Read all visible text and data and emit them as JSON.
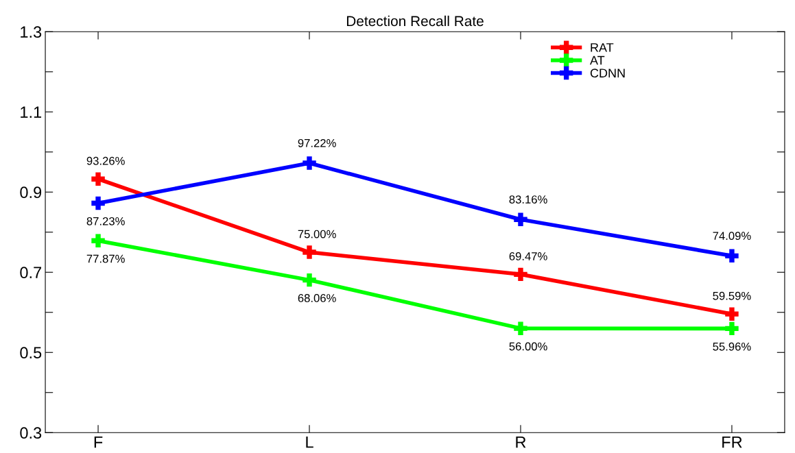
{
  "chart_data": {
    "type": "line",
    "title": "Detection Recall Rate",
    "categories": [
      "F",
      "L",
      "R",
      "FR"
    ],
    "series": [
      {
        "name": "RAT",
        "color": "#ff0000",
        "values": [
          0.9326,
          0.75,
          0.6947,
          0.5959
        ],
        "value_labels": [
          "93.26%",
          "75.00%",
          "69.47%",
          "59.59%"
        ]
      },
      {
        "name": "AT",
        "color": "#00ff00",
        "values": [
          0.7787,
          0.6806,
          0.56,
          0.5596
        ],
        "value_labels": [
          "77.87%",
          "68.06%",
          "56.00%",
          "55.96%"
        ]
      },
      {
        "name": "CDNN",
        "color": "#0000ff",
        "values": [
          0.8723,
          0.9722,
          0.8316,
          0.7409
        ],
        "value_labels": [
          "87.23%",
          "97.22%",
          "83.16%",
          "74.09%"
        ]
      }
    ],
    "ylim": [
      0.3,
      1.3
    ],
    "yticks": [
      0.3,
      {
        "value": 0.4,
        "label": null
      },
      0.5,
      {
        "value": 0.6,
        "label": null
      },
      0.7,
      {
        "value": 0.8,
        "label": null
      },
      0.9,
      {
        "value": 1.0,
        "label": null
      },
      1.1,
      {
        "value": 1.2,
        "label": null
      },
      1.3
    ],
    "marker": "cross",
    "line_style": "solid",
    "legend": "top right",
    "grid": false
  }
}
